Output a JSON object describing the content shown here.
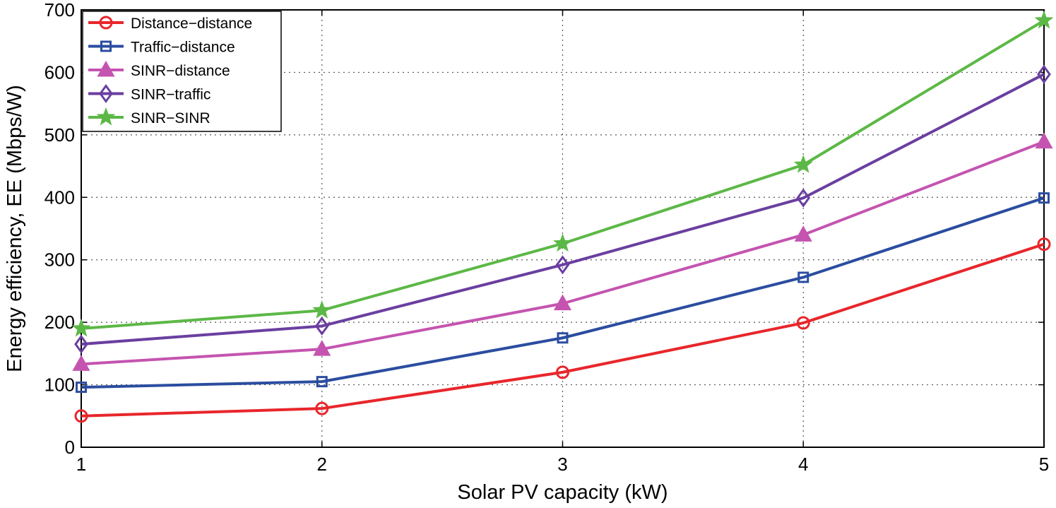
{
  "chart_data": {
    "type": "line",
    "title": "",
    "xlabel": "Solar PV capacity (kW)",
    "ylabel": "Energy efficiency, EE (Mbps/W)",
    "x": [
      1,
      2,
      3,
      4,
      5
    ],
    "xlim": [
      1,
      5
    ],
    "ylim": [
      0,
      700
    ],
    "xticks": [
      1,
      2,
      3,
      4,
      5
    ],
    "yticks": [
      0,
      100,
      200,
      300,
      400,
      500,
      600,
      700
    ],
    "grid": true,
    "legend_position": "top-left",
    "series": [
      {
        "name": "Distance−distance",
        "color": "#e8262b",
        "marker": "circle",
        "values": [
          50,
          62,
          120,
          199,
          325
        ]
      },
      {
        "name": "Traffic−distance",
        "color": "#2b4da0",
        "marker": "square",
        "values": [
          96,
          105,
          175,
          272,
          399
        ]
      },
      {
        "name": "SINR−distance",
        "color": "#c454b0",
        "marker": "triangle",
        "values": [
          133,
          157,
          230,
          340,
          489
        ]
      },
      {
        "name": "SINR−traffic",
        "color": "#6a3fa0",
        "marker": "diamond",
        "values": [
          165,
          194,
          292,
          399,
          597
        ]
      },
      {
        "name": "SINR−SINR",
        "color": "#5cb846",
        "marker": "star",
        "values": [
          190,
          219,
          326,
          452,
          683
        ]
      }
    ]
  }
}
